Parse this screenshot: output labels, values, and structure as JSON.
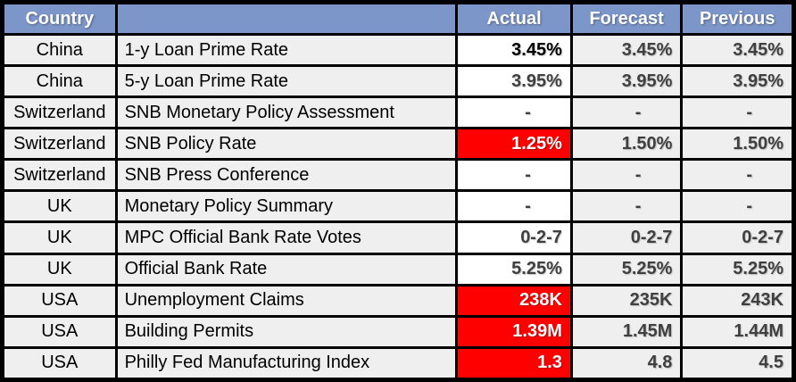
{
  "colors": {
    "header_bg": "#7C96C9",
    "header_text": "#FFFFFF",
    "row_bg": "#EFEFEF",
    "actual_bg": "#FFFFFF",
    "highlight_bg": "#FF0000",
    "number_text": "#404040",
    "label_text": "#000000"
  },
  "chart_data": {
    "type": "table",
    "header": {
      "country": "Country",
      "event": "",
      "actual": "Actual",
      "forecast": "Forecast",
      "previous": "Previous"
    },
    "rows": [
      {
        "country": "China",
        "event": "1-y Loan Prime Rate",
        "actual": "3.45%",
        "forecast": "3.45%",
        "previous": "3.45%",
        "actual_highlight": false
      },
      {
        "country": "China",
        "event": "5-y Loan Prime Rate",
        "actual": "3.95%",
        "forecast": "3.95%",
        "previous": "3.95%",
        "actual_highlight": false
      },
      {
        "country": "Switzerland",
        "event": "SNB Monetary Policy Assessment",
        "actual": "-",
        "forecast": "-",
        "previous": "-",
        "actual_highlight": false
      },
      {
        "country": "Switzerland",
        "event": "SNB Policy Rate",
        "actual": "1.25%",
        "forecast": "1.50%",
        "previous": "1.50%",
        "actual_highlight": true
      },
      {
        "country": "Switzerland",
        "event": "SNB Press Conference",
        "actual": "-",
        "forecast": "-",
        "previous": "-",
        "actual_highlight": false
      },
      {
        "country": "UK",
        "event": "Monetary Policy Summary",
        "actual": "-",
        "forecast": "-",
        "previous": "-",
        "actual_highlight": false
      },
      {
        "country": "UK",
        "event": "MPC Official Bank Rate Votes",
        "actual": "0-2-7",
        "forecast": "0-2-7",
        "previous": "0-2-7",
        "actual_highlight": false
      },
      {
        "country": "UK",
        "event": "Official Bank Rate",
        "actual": "5.25%",
        "forecast": "5.25%",
        "previous": "5.25%",
        "actual_highlight": false
      },
      {
        "country": "USA",
        "event": "Unemployment Claims",
        "actual": "238K",
        "forecast": "235K",
        "previous": "243K",
        "actual_highlight": true
      },
      {
        "country": "USA",
        "event": "Building Permits",
        "actual": "1.39M",
        "forecast": "1.45M",
        "previous": "1.44M",
        "actual_highlight": true
      },
      {
        "country": "USA",
        "event": "Philly Fed Manufacturing Index",
        "actual": "1.3",
        "forecast": "4.8",
        "previous": "4.5",
        "actual_highlight": true
      }
    ]
  }
}
